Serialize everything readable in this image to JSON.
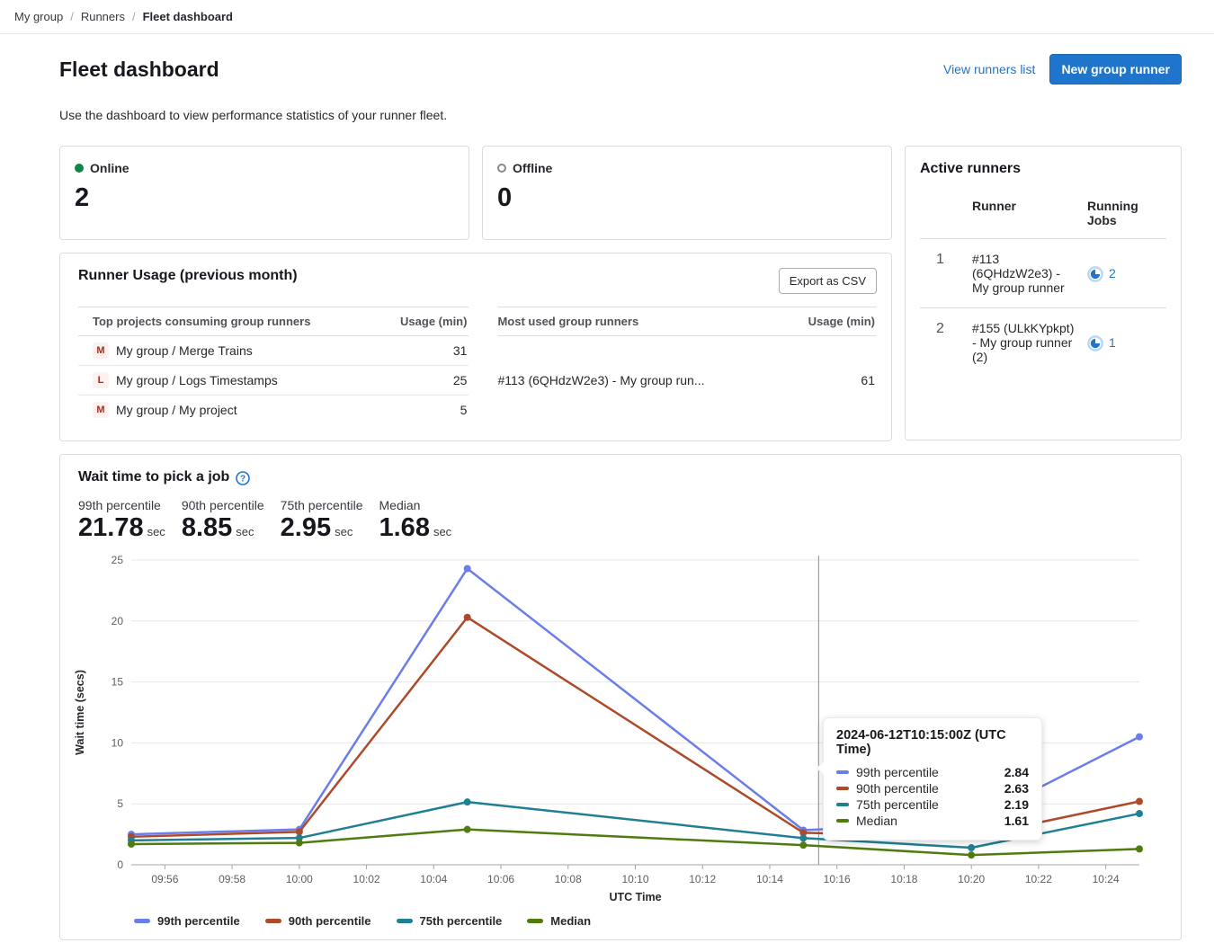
{
  "breadcrumb": {
    "separator": "/",
    "items": [
      "My group",
      "Runners",
      "Fleet dashboard"
    ]
  },
  "header": {
    "title": "Fleet dashboard",
    "view_runners_link": "View runners list",
    "new_runner_button": "New group runner",
    "description": "Use the dashboard to view performance statistics of your runner fleet."
  },
  "status_cards": {
    "online": {
      "label": "Online",
      "value": "2"
    },
    "offline": {
      "label": "Offline",
      "value": "0"
    }
  },
  "runner_usage": {
    "title": "Runner Usage (previous month)",
    "export_button": "Export as CSV",
    "projects_table": {
      "col_name": "Top projects consuming group runners",
      "col_usage": "Usage (min)",
      "rows": [
        {
          "avatar": "M",
          "name": "My group / Merge Trains",
          "usage": "31"
        },
        {
          "avatar": "L",
          "name": "My group / Logs Timestamps",
          "usage": "25"
        },
        {
          "avatar": "M",
          "name": "My group / My project",
          "usage": "5"
        }
      ]
    },
    "runners_table": {
      "col_name": "Most used group runners",
      "col_usage": "Usage (min)",
      "rows": [
        {
          "name": "#113 (6QHdzW2e3) - My group run...",
          "usage": "61"
        }
      ]
    }
  },
  "active_runners": {
    "title": "Active runners",
    "col_runner": "Runner",
    "col_jobs": "Running Jobs",
    "rows": [
      {
        "index": "1",
        "runner": "#113 (6QHdzW2e3) - My group runner",
        "jobs": "2"
      },
      {
        "index": "2",
        "runner": "#155 (ULkKYpkpt) - My group runner (2)",
        "jobs": "1"
      }
    ]
  },
  "wait_time": {
    "title": "Wait time to pick a job",
    "stats": [
      {
        "label": "99th percentile",
        "value": "21.78",
        "unit": "sec"
      },
      {
        "label": "90th percentile",
        "value": "8.85",
        "unit": "sec"
      },
      {
        "label": "75th percentile",
        "value": "2.95",
        "unit": "sec"
      },
      {
        "label": "Median",
        "value": "1.68",
        "unit": "sec"
      }
    ]
  },
  "chart_data": {
    "type": "line",
    "title": "Wait time to pick a job",
    "xlabel": "UTC Time",
    "ylabel": "Wait time (secs)",
    "ylim": [
      0,
      25
    ],
    "y_ticks": [
      0,
      5,
      10,
      15,
      20,
      25
    ],
    "x_domain": [
      "09:55",
      "10:25"
    ],
    "x_ticks": [
      "09:56",
      "09:58",
      "10:00",
      "10:02",
      "10:04",
      "10:06",
      "10:08",
      "10:10",
      "10:12",
      "10:14",
      "10:16",
      "10:18",
      "10:20",
      "10:22",
      "10:24"
    ],
    "x": [
      "09:55",
      "10:00",
      "10:05",
      "10:15",
      "10:20",
      "10:25"
    ],
    "series": [
      {
        "name": "99th percentile",
        "color": "#6b7de8",
        "values": [
          2.5,
          2.9,
          24.3,
          2.84,
          3.5,
          10.5
        ]
      },
      {
        "name": "90th percentile",
        "color": "#ad4a29",
        "values": [
          2.3,
          2.7,
          20.3,
          2.63,
          2.3,
          5.2
        ]
      },
      {
        "name": "75th percentile",
        "color": "#1f8094",
        "values": [
          2.0,
          2.2,
          5.15,
          2.19,
          1.4,
          4.2
        ]
      },
      {
        "name": "Median",
        "color": "#4f7b0f",
        "values": [
          1.7,
          1.8,
          2.9,
          1.61,
          0.8,
          1.3
        ]
      }
    ],
    "grid": "horizontal",
    "legend_position": "bottom",
    "crosshair_x": "10:15",
    "tooltip": {
      "title": "2024-06-12T10:15:00Z (UTC Time)",
      "rows": [
        {
          "name": "99th percentile",
          "value": "2.84"
        },
        {
          "name": "90th percentile",
          "value": "2.63"
        },
        {
          "name": "75th percentile",
          "value": "2.19"
        },
        {
          "name": "Median",
          "value": "1.61"
        }
      ]
    }
  },
  "colors": {
    "accent_blue": "#1f75cb",
    "online_green": "#108548",
    "offline_gray": "#89888d"
  }
}
